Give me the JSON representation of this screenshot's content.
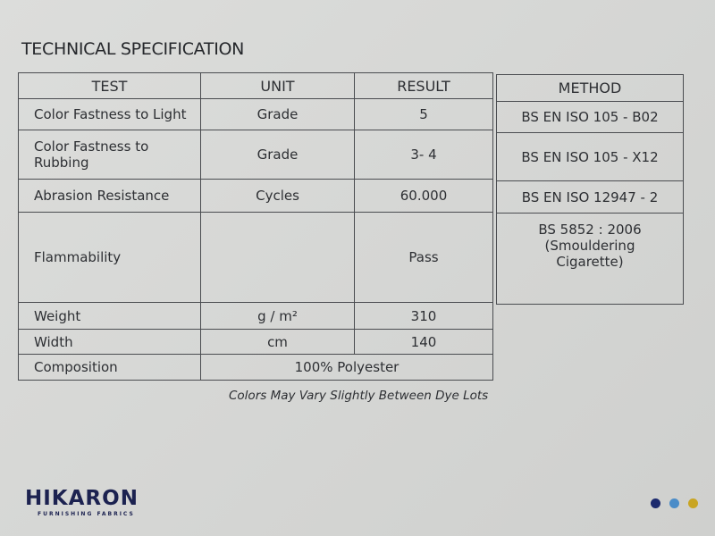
{
  "title": "TECHNICAL SPECIFICATION",
  "headers": [
    "TEST",
    "UNIT",
    "RESULT",
    "METHOD"
  ],
  "rows": [
    {
      "test": "Color Fastness to Light",
      "unit": "Grade",
      "result": "5",
      "method": "BS EN ISO 105 - B02"
    },
    {
      "test": "Color Fastness to Rubbing",
      "unit": "Grade",
      "result": "3- 4",
      "method": "BS EN ISO 105 - X12"
    },
    {
      "test": "Abrasion Resistance",
      "unit": "Cycles",
      "result": "60.000",
      "method": "BS EN ISO 12947 - 2"
    },
    {
      "test": "Flammability",
      "unit": "",
      "result": "Pass",
      "method": "BS 5852 : 2006 (Smouldering Cigarette)"
    },
    {
      "test": "Weight",
      "unit": "g / m²",
      "result": "310"
    },
    {
      "test": "Width",
      "unit": "cm",
      "result": "140"
    },
    {
      "test": "Composition",
      "value": "100% Polyester"
    }
  ],
  "note": "Colors May Vary Slightly Between Dye Lots",
  "logo": {
    "name": "HIKARON",
    "tagline": "FURNISHING FABRICS"
  },
  "dots": [
    "#1c2a6e",
    "#4a8cc8",
    "#c9a523"
  ]
}
